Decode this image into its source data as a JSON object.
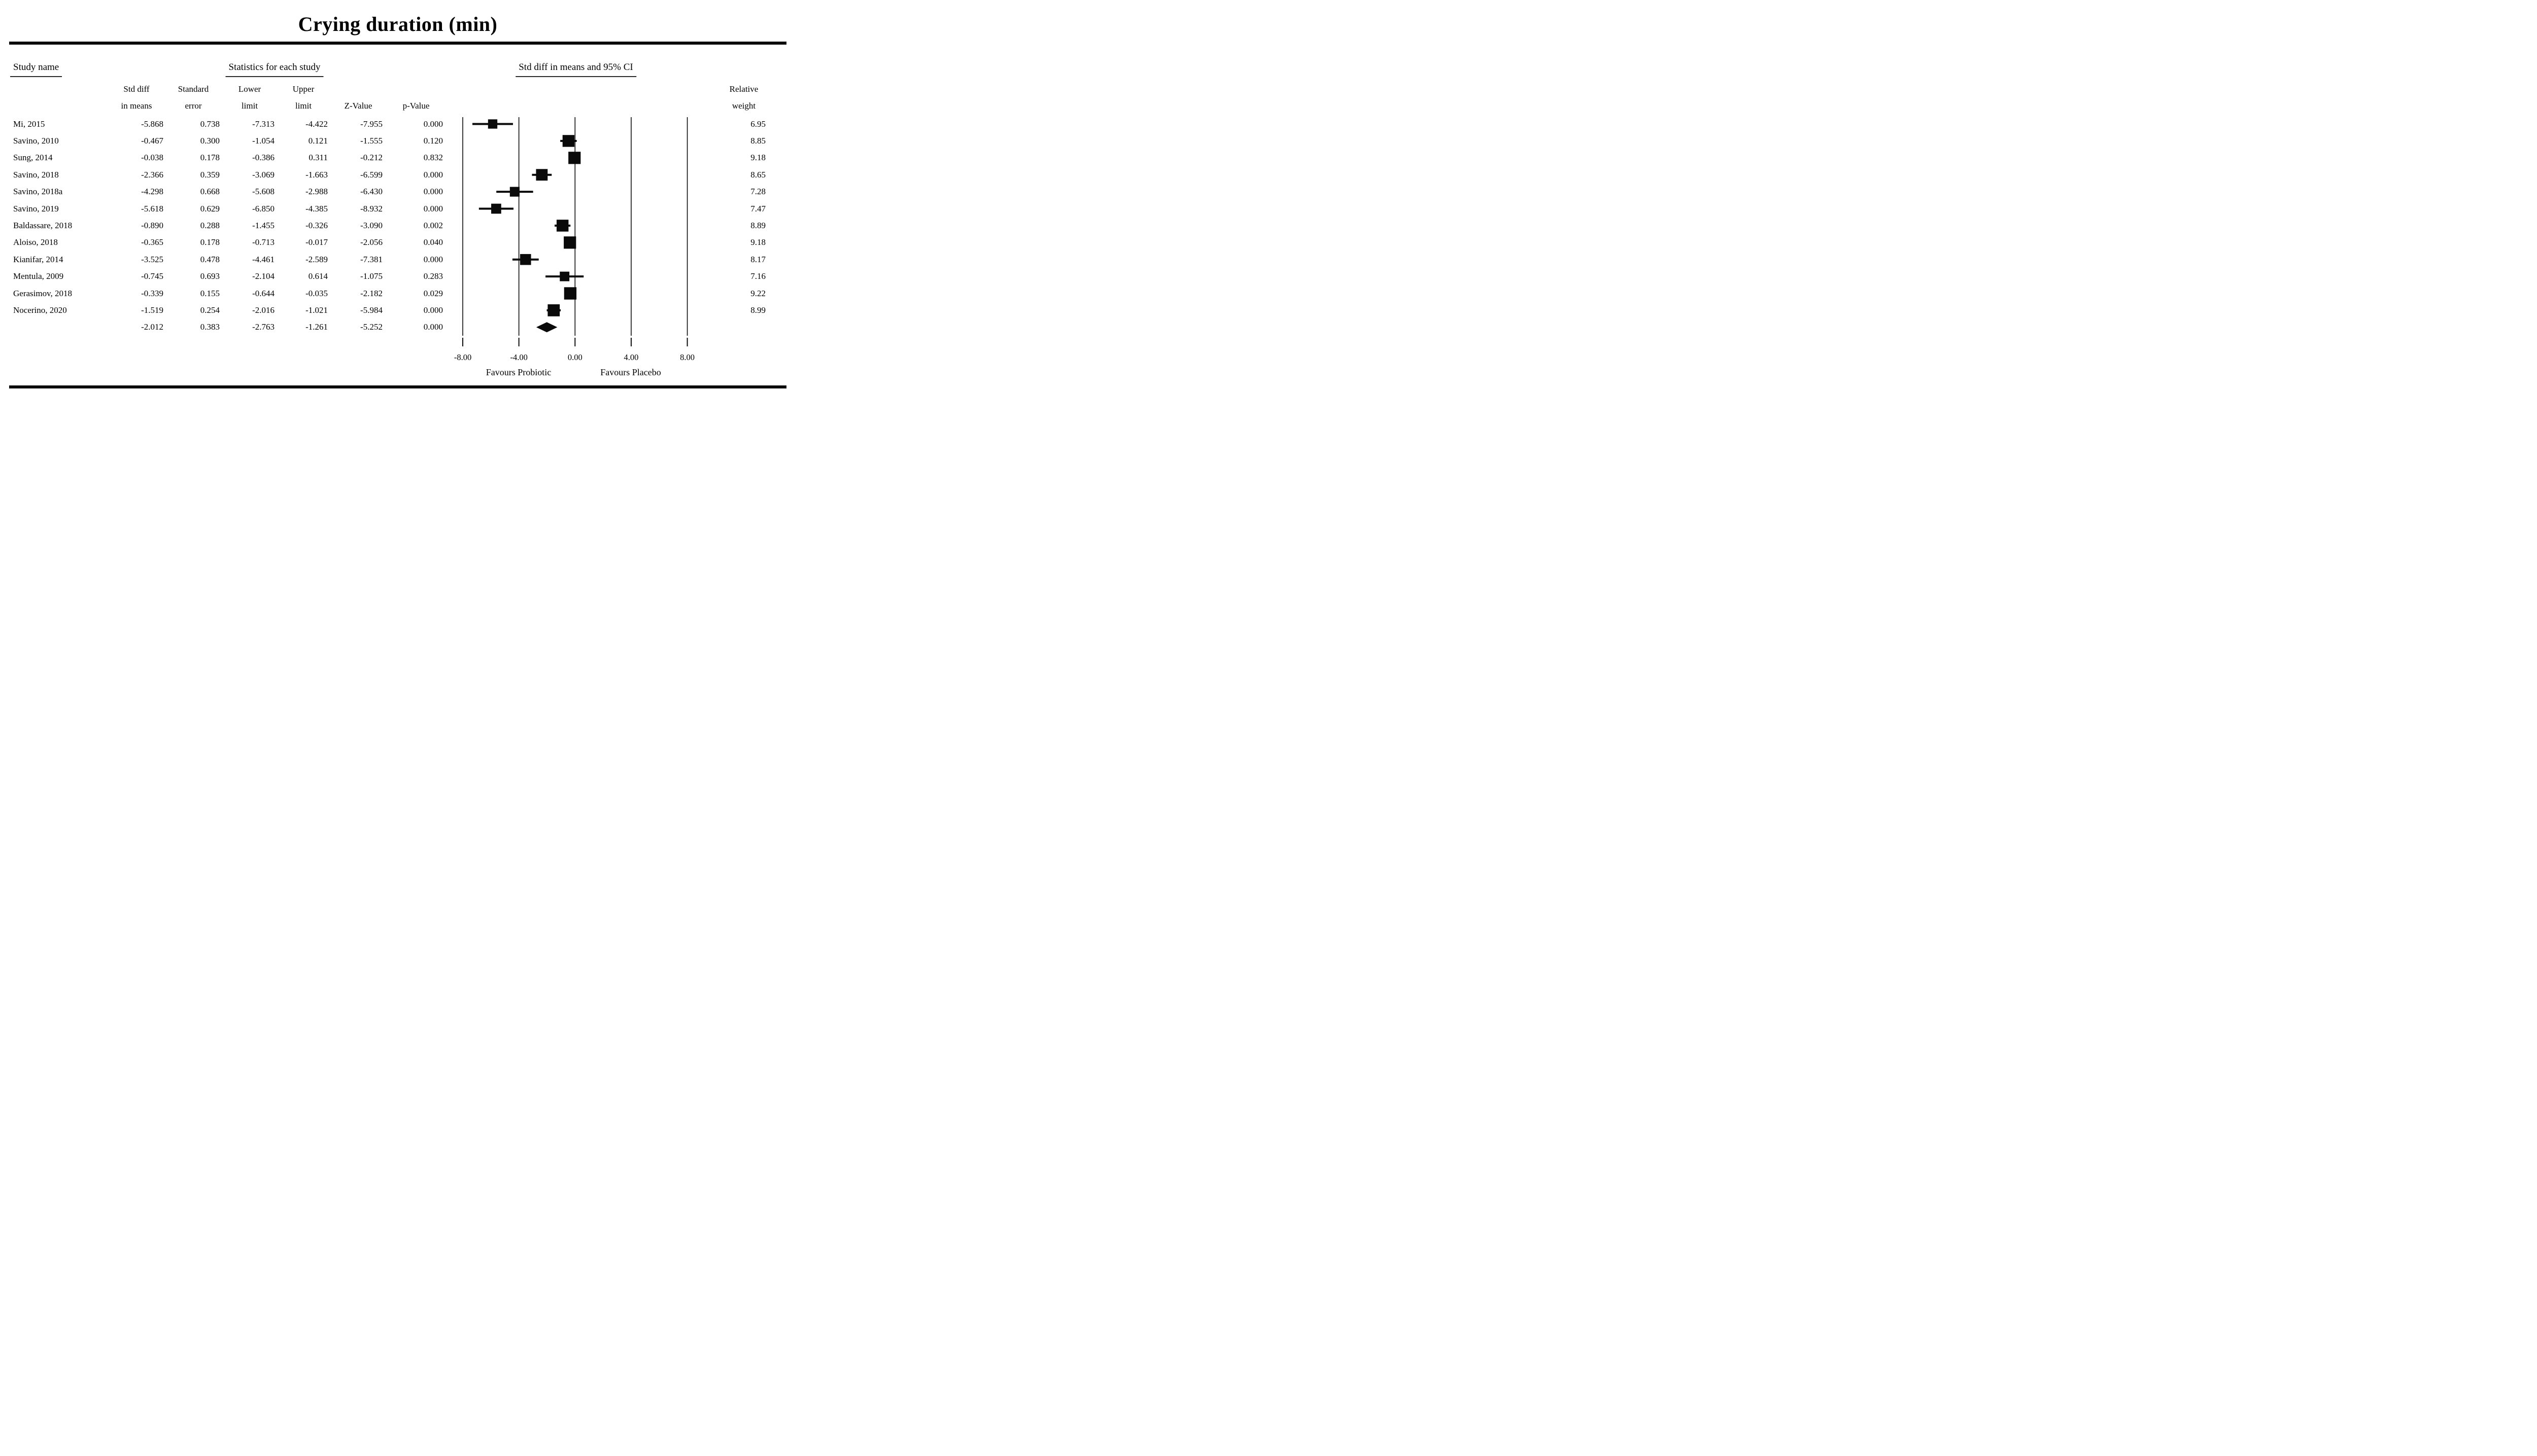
{
  "title": "Crying duration (min)",
  "headers": {
    "study_name": "Study name",
    "statistics": "Statistics for each study",
    "ci_plot": "Std diff in means and 95% CI",
    "columns": [
      [
        "Std diff",
        "in means"
      ],
      [
        "Standard",
        "error"
      ],
      [
        "Lower",
        "limit"
      ],
      [
        "Upper",
        "limit"
      ],
      [
        "Z-Value"
      ],
      [
        "p-Value"
      ]
    ],
    "relative_weight": [
      "Relative",
      "weight"
    ]
  },
  "chart_data": {
    "type": "forest",
    "title": "Crying duration (min)",
    "x_ticks": [
      -8,
      -4,
      0,
      4,
      8
    ],
    "x_tick_labels": [
      "-8.00",
      "-4.00",
      "0.00",
      "4.00",
      "8.00"
    ],
    "xlim": [
      -8.9,
      8.9
    ],
    "grid": "vertical-lines-at-ticks",
    "legend_position": "none",
    "footer_left": "Favours Probiotic",
    "footer_right": "Favours Placebo",
    "columns": [
      "Std diff in means",
      "Standard error",
      "Lower limit",
      "Upper limit",
      "Z-Value",
      "p-Value",
      "Relative weight"
    ],
    "studies": [
      {
        "name": "Mi, 2015",
        "std_diff": -5.868,
        "std_err": 0.738,
        "lower": -7.313,
        "upper": -4.422,
        "z": -7.955,
        "p": 0.0,
        "weight": 6.95
      },
      {
        "name": "Savino, 2010",
        "std_diff": -0.467,
        "std_err": 0.3,
        "lower": -1.054,
        "upper": 0.121,
        "z": -1.555,
        "p": 0.12,
        "weight": 8.85
      },
      {
        "name": "Sung, 2014",
        "std_diff": -0.038,
        "std_err": 0.178,
        "lower": -0.386,
        "upper": 0.311,
        "z": -0.212,
        "p": 0.832,
        "weight": 9.18
      },
      {
        "name": "Savino, 2018",
        "std_diff": -2.366,
        "std_err": 0.359,
        "lower": -3.069,
        "upper": -1.663,
        "z": -6.599,
        "p": 0.0,
        "weight": 8.65
      },
      {
        "name": "Savino, 2018a",
        "std_diff": -4.298,
        "std_err": 0.668,
        "lower": -5.608,
        "upper": -2.988,
        "z": -6.43,
        "p": 0.0,
        "weight": 7.28
      },
      {
        "name": "Savino, 2019",
        "std_diff": -5.618,
        "std_err": 0.629,
        "lower": -6.85,
        "upper": -4.385,
        "z": -8.932,
        "p": 0.0,
        "weight": 7.47
      },
      {
        "name": "Baldassare, 2018",
        "std_diff": -0.89,
        "std_err": 0.288,
        "lower": -1.455,
        "upper": -0.326,
        "z": -3.09,
        "p": 0.002,
        "weight": 8.89
      },
      {
        "name": "Aloiso, 2018",
        "std_diff": -0.365,
        "std_err": 0.178,
        "lower": -0.713,
        "upper": -0.017,
        "z": -2.056,
        "p": 0.04,
        "weight": 9.18
      },
      {
        "name": "Kianifar, 2014",
        "std_diff": -3.525,
        "std_err": 0.478,
        "lower": -4.461,
        "upper": -2.589,
        "z": -7.381,
        "p": 0.0,
        "weight": 8.17
      },
      {
        "name": "Mentula, 2009",
        "std_diff": -0.745,
        "std_err": 0.693,
        "lower": -2.104,
        "upper": 0.614,
        "z": -1.075,
        "p": 0.283,
        "weight": 7.16
      },
      {
        "name": "Gerasimov, 2018",
        "std_diff": -0.339,
        "std_err": 0.155,
        "lower": -0.644,
        "upper": -0.035,
        "z": -2.182,
        "p": 0.029,
        "weight": 9.22
      },
      {
        "name": "Nocerino, 2020",
        "std_diff": -1.519,
        "std_err": 0.254,
        "lower": -2.016,
        "upper": -1.021,
        "z": -5.984,
        "p": 0.0,
        "weight": 8.99
      }
    ],
    "overall": {
      "name": "",
      "std_diff": -2.012,
      "std_err": 0.383,
      "lower": -2.763,
      "upper": -1.261,
      "z": -5.252,
      "p": 0.0,
      "weight": null
    }
  }
}
